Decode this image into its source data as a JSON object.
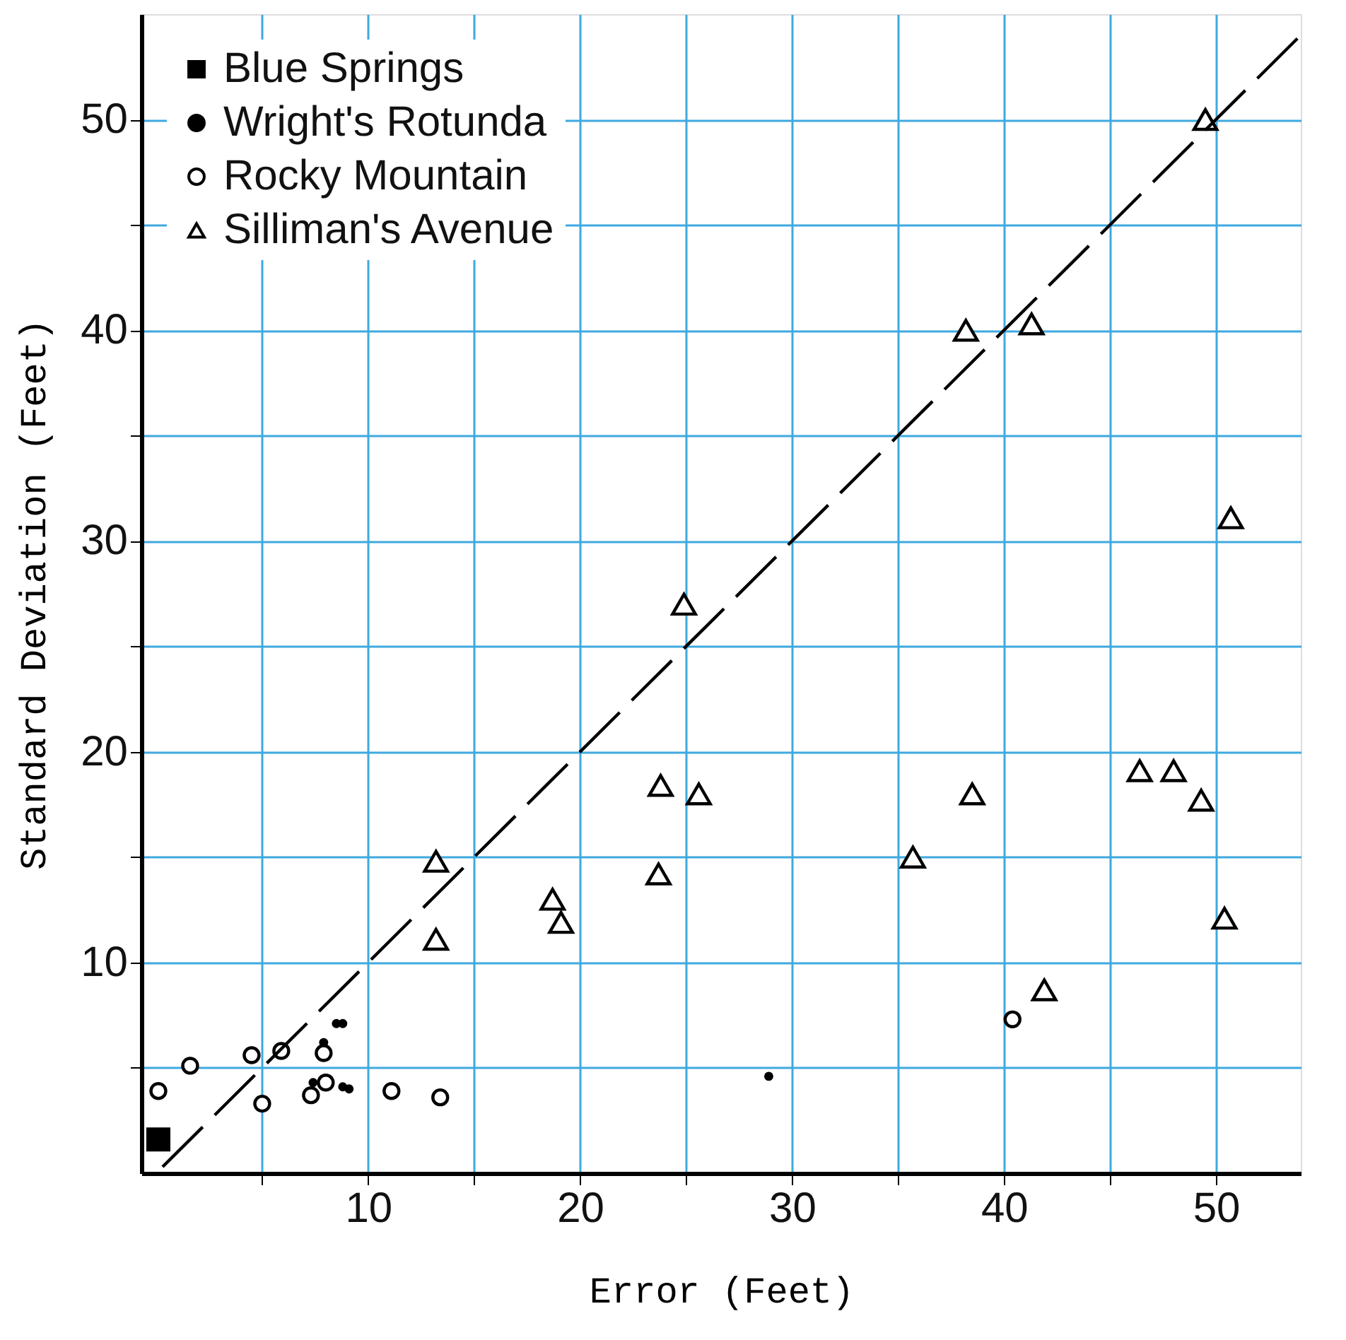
{
  "chart_data": {
    "type": "scatter",
    "xlabel": "Error (Feet)",
    "ylabel": "Standard Deviation (Feet)",
    "xlim": [
      -0.7,
      54
    ],
    "ylim": [
      0,
      55
    ],
    "xticks": [
      {
        "value": 5,
        "label": null
      },
      10,
      {
        "value": 15,
        "label": null
      },
      20,
      {
        "value": 25,
        "label": null
      },
      30,
      {
        "value": 35,
        "label": null
      },
      40,
      {
        "value": 45,
        "label": null
      },
      50
    ],
    "yticks": [
      {
        "value": 5,
        "label": null
      },
      10,
      {
        "value": 15,
        "label": null
      },
      20,
      {
        "value": 25,
        "label": null
      },
      30,
      {
        "value": 35,
        "label": null
      },
      40,
      {
        "value": 45,
        "label": null
      },
      50
    ],
    "grid": true,
    "legend": "top left",
    "series": [
      {
        "name": "Blue Springs",
        "color": "#000000",
        "marker": "square",
        "x": [
          0.1
        ],
        "values": [
          1.6
        ]
      },
      {
        "name": "Wright's Rotunda",
        "color": "#000000",
        "marker": "circle",
        "x": [
          8.5,
          8.8,
          7.9,
          8.8,
          9.1,
          7.4,
          28.9
        ],
        "values": [
          7.1,
          7.1,
          6.2,
          4.1,
          4.0,
          4.3,
          4.6
        ]
      },
      {
        "name": "Rocky Mountain",
        "color": "#000000",
        "marker": "circle",
        "x": [
          0.1,
          1.6,
          4.5,
          5.9,
          5.0,
          7.9,
          7.3,
          8.0,
          11.1,
          13.4,
          40.4
        ],
        "values": [
          3.9,
          5.1,
          5.6,
          5.8,
          3.3,
          5.7,
          3.7,
          4.3,
          3.9,
          3.6,
          7.3
        ]
      },
      {
        "name": "Silliman's Avenue",
        "color": "#000000",
        "marker": "triangle",
        "x": [
          49.5,
          38.2,
          41.3,
          50.7,
          24.9,
          13.2,
          13.2,
          18.7,
          19.1,
          23.8,
          25.6,
          23.7,
          35.7,
          38.5,
          46.4,
          48.0,
          49.3,
          50.4,
          41.9
        ],
        "values": [
          50.0,
          40.0,
          40.3,
          31.1,
          27.0,
          14.8,
          11.1,
          13.0,
          11.9,
          18.4,
          18.0,
          14.2,
          15.0,
          18.0,
          19.1,
          19.1,
          17.7,
          12.1,
          8.7
        ]
      },
      {
        "type": "line",
        "color": "#000000",
        "line_style": "dashed",
        "x": [
          0.3,
          54
        ],
        "values": [
          0.3,
          54
        ]
      }
    ]
  }
}
